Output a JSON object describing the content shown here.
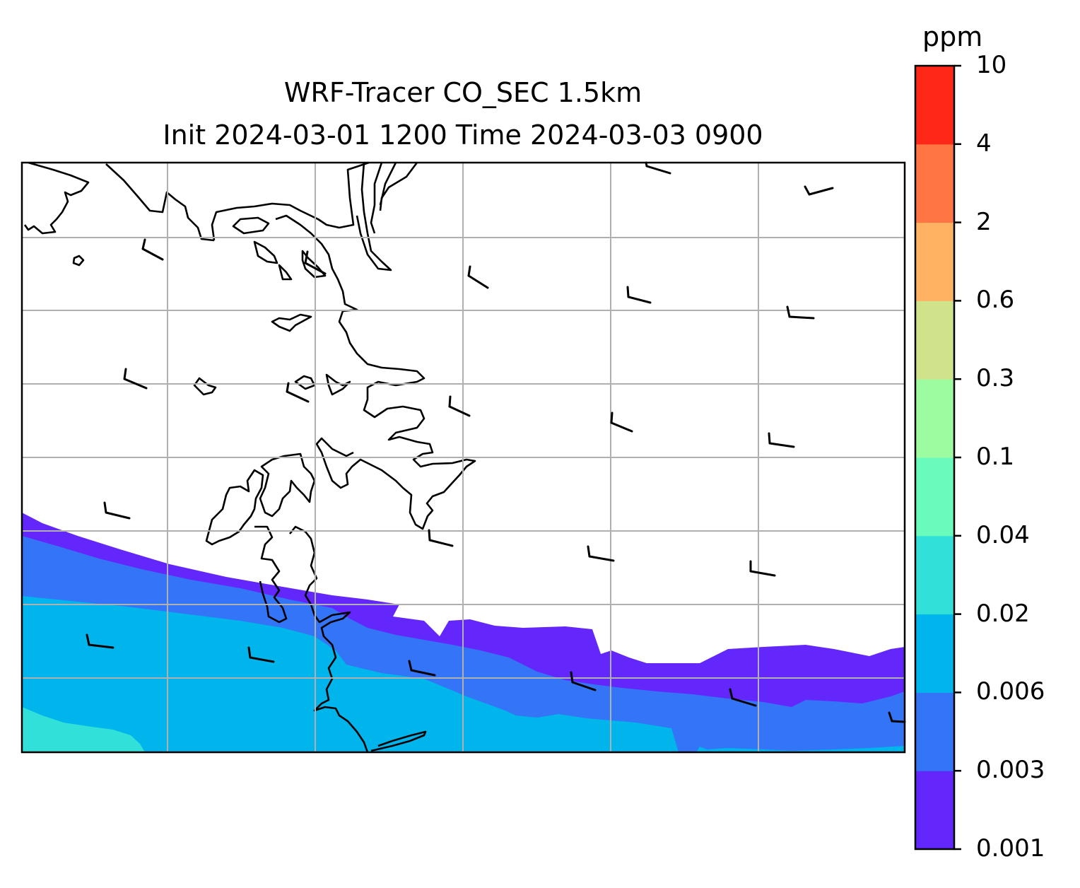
{
  "title": {
    "line1": "WRF-Tracer CO_SEC 1.5km",
    "line2": "Init 2024-03-01 1200 Time 2024-03-03 0900"
  },
  "colorbar": {
    "unit": "ppm",
    "levels": [
      "0.001",
      "0.003",
      "0.006",
      "0.02",
      "0.04",
      "0.1",
      "0.3",
      "0.6",
      "2",
      "4",
      "10"
    ],
    "colors": [
      "#6427fb",
      "#3474f6",
      "#00b4ec",
      "#31e1d9",
      "#68fbbc",
      "#9cfc9f",
      "#d0e38a",
      "#ffb261",
      "#ff7543",
      "#ff2718"
    ]
  },
  "map": {
    "gridlines": true,
    "coastline_color": "#000000",
    "gridline_color": "#b0b0b0",
    "wind_barbs": "black, one half-barb each"
  }
}
